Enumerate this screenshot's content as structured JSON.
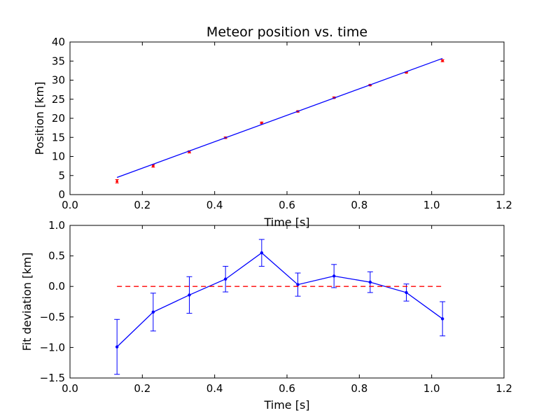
{
  "figure": {
    "background": "#ffffff"
  },
  "chart_data": [
    {
      "type": "scatter",
      "title": "Meteor position vs. time",
      "xlabel": "Time [s]",
      "ylabel": "Position [km]",
      "xlim": [
        0.0,
        1.2
      ],
      "ylim": [
        0,
        40
      ],
      "xticks": [
        "0.0",
        "0.2",
        "0.4",
        "0.6",
        "0.8",
        "1.0",
        "1.2"
      ],
      "yticks": [
        "0",
        "5",
        "10",
        "15",
        "20",
        "25",
        "30",
        "35",
        "40"
      ],
      "grid": false,
      "series": [
        {
          "kind": "errorbar-points",
          "color": "#ff0000",
          "x": [
            0.13,
            0.23,
            0.33,
            0.43,
            0.53,
            0.63,
            0.73,
            0.83,
            0.93,
            1.03
          ],
          "y": [
            3.5,
            7.5,
            11.2,
            14.9,
            18.8,
            21.8,
            25.4,
            28.7,
            32.0,
            35.1
          ],
          "yerr": [
            0.45,
            0.32,
            0.29,
            0.21,
            0.22,
            0.19,
            0.2,
            0.18,
            0.14,
            0.28
          ]
        },
        {
          "kind": "fit-line",
          "color": "#0000ff",
          "x": [
            0.13,
            1.03
          ],
          "y": [
            4.5,
            35.7
          ]
        }
      ]
    },
    {
      "type": "line",
      "title": "",
      "xlabel": "Time [s]",
      "ylabel": "Fit deviation [km]",
      "xlim": [
        0.0,
        1.2
      ],
      "ylim": [
        -1.5,
        1.0
      ],
      "xticks": [
        "0.0",
        "0.2",
        "0.4",
        "0.6",
        "0.8",
        "1.0",
        "1.2"
      ],
      "yticks": [
        "−1.5",
        "−1.0",
        "−0.5",
        "0.0",
        "0.5",
        "1.0"
      ],
      "grid": false,
      "series": [
        {
          "kind": "errorbar-line",
          "color": "#0000ff",
          "x": [
            0.13,
            0.23,
            0.33,
            0.43,
            0.53,
            0.63,
            0.73,
            0.83,
            0.93,
            1.03
          ],
          "y": [
            -0.99,
            -0.42,
            -0.14,
            0.12,
            0.55,
            0.03,
            0.17,
            0.07,
            -0.1,
            -0.53
          ],
          "yerr": [
            0.45,
            0.31,
            0.3,
            0.21,
            0.22,
            0.19,
            0.19,
            0.17,
            0.14,
            0.28
          ]
        },
        {
          "kind": "zero-line",
          "color": "#ff0000",
          "dashed": true,
          "x": [
            0.13,
            1.03
          ],
          "y": [
            0,
            0
          ]
        }
      ]
    }
  ]
}
